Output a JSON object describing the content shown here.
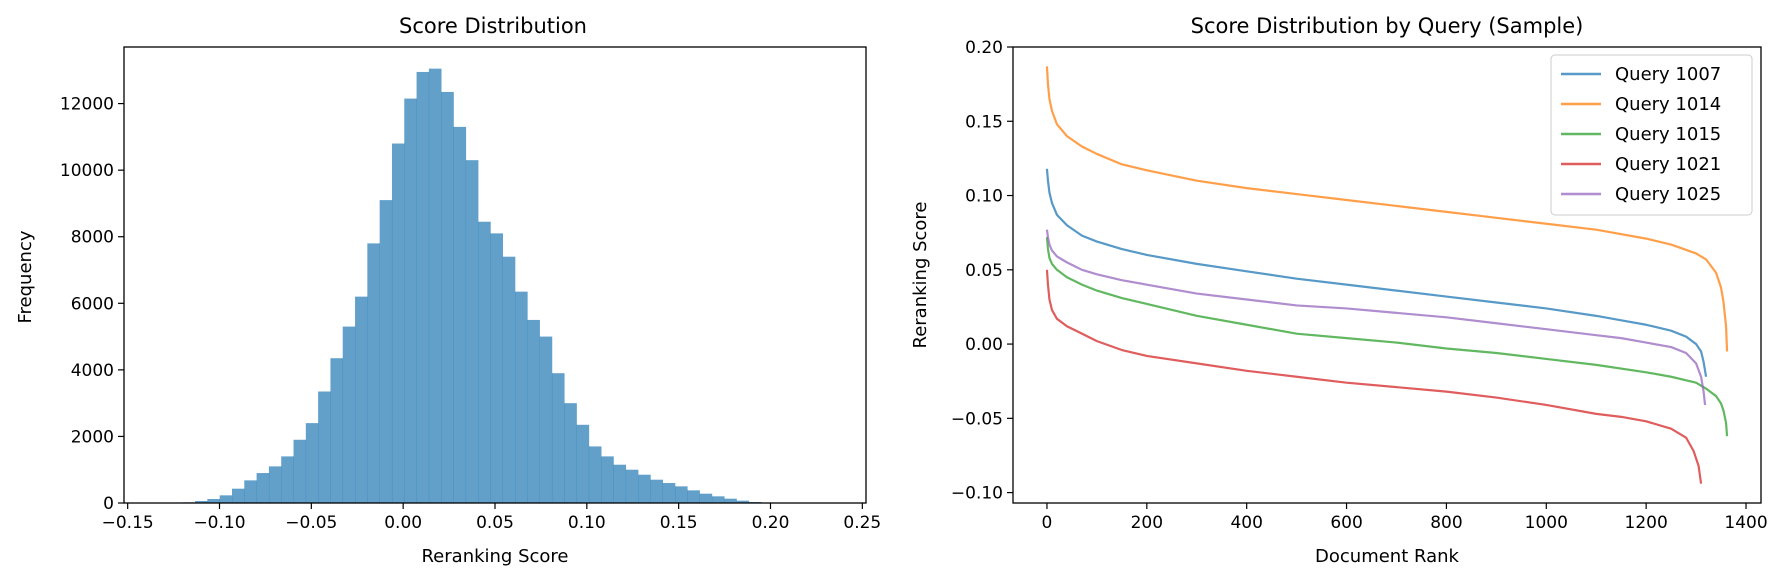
{
  "chart_data": [
    {
      "type": "bar",
      "title": "Score Distribution",
      "xlabel": "Reranking Score",
      "ylabel": "Frequency",
      "xlim": [
        -0.152,
        0.252
      ],
      "ylim": [
        0,
        13700
      ],
      "xticks": [
        -0.15,
        -0.1,
        -0.05,
        0.0,
        0.05,
        0.1,
        0.15,
        0.2,
        0.25
      ],
      "xtick_labels": [
        "−0.15",
        "−0.10",
        "−0.05",
        "0.00",
        "0.05",
        "0.10",
        "0.15",
        "0.20",
        "0.25"
      ],
      "yticks": [
        0,
        2000,
        4000,
        6000,
        8000,
        10000,
        12000
      ],
      "ytick_labels": [
        "0",
        "2000",
        "4000",
        "6000",
        "8000",
        "10000",
        "12000"
      ],
      "grid": false,
      "bar_color": "#1f77b4",
      "bin_edges_start": -0.12,
      "bin_width": 0.0067,
      "values": [
        20,
        60,
        120,
        230,
        430,
        680,
        900,
        1100,
        1400,
        1900,
        2400,
        3350,
        4350,
        5300,
        6200,
        7800,
        9100,
        10800,
        12150,
        12950,
        13050,
        12350,
        11300,
        10300,
        8450,
        8100,
        7400,
        6350,
        5500,
        5000,
        3900,
        3000,
        2350,
        1700,
        1400,
        1150,
        1000,
        850,
        700,
        600,
        500,
        380,
        280,
        200,
        130,
        70,
        30,
        10
      ]
    },
    {
      "type": "line",
      "title": "Score Distribution by Query (Sample)",
      "xlabel": "Document Rank",
      "ylabel": "Reranking Score",
      "xlim": [
        -68,
        1430
      ],
      "ylim": [
        -0.107,
        0.2
      ],
      "xticks": [
        0,
        200,
        400,
        600,
        800,
        1000,
        1200,
        1400
      ],
      "xtick_labels": [
        "0",
        "200",
        "400",
        "600",
        "800",
        "1000",
        "1200",
        "1400"
      ],
      "yticks": [
        -0.1,
        -0.05,
        0.0,
        0.05,
        0.1,
        0.15,
        0.2
      ],
      "ytick_labels": [
        "−0.10",
        "−0.05",
        "0.00",
        "0.05",
        "0.10",
        "0.15",
        "0.20"
      ],
      "grid": false,
      "legend": "top-right",
      "series": [
        {
          "name": "Query 1007",
          "color": "#1f77b4",
          "x": [
            0,
            2,
            5,
            10,
            20,
            40,
            70,
            100,
            150,
            200,
            300,
            400,
            500,
            600,
            700,
            800,
            900,
            1000,
            1100,
            1150,
            1200,
            1250,
            1280,
            1300,
            1310,
            1315,
            1320
          ],
          "y": [
            0.118,
            0.11,
            0.102,
            0.095,
            0.087,
            0.08,
            0.073,
            0.069,
            0.064,
            0.06,
            0.054,
            0.049,
            0.044,
            0.04,
            0.036,
            0.032,
            0.028,
            0.024,
            0.019,
            0.016,
            0.013,
            0.009,
            0.005,
            0.0,
            -0.005,
            -0.012,
            -0.022
          ]
        },
        {
          "name": "Query 1014",
          "color": "#ff7f0e",
          "x": [
            0,
            2,
            5,
            10,
            20,
            40,
            70,
            100,
            150,
            200,
            300,
            400,
            500,
            600,
            700,
            800,
            900,
            1000,
            1100,
            1200,
            1250,
            1300,
            1320,
            1340,
            1350,
            1355,
            1360,
            1362
          ],
          "y": [
            0.187,
            0.175,
            0.165,
            0.157,
            0.148,
            0.14,
            0.133,
            0.128,
            0.121,
            0.117,
            0.11,
            0.105,
            0.101,
            0.097,
            0.093,
            0.089,
            0.085,
            0.081,
            0.077,
            0.071,
            0.067,
            0.061,
            0.057,
            0.048,
            0.038,
            0.028,
            0.012,
            -0.005
          ]
        },
        {
          "name": "Query 1015",
          "color": "#2ca02c",
          "x": [
            0,
            2,
            5,
            10,
            20,
            40,
            70,
            100,
            150,
            200,
            300,
            400,
            500,
            600,
            700,
            800,
            900,
            1000,
            1100,
            1200,
            1250,
            1300,
            1320,
            1340,
            1350,
            1355,
            1360,
            1362
          ],
          "y": [
            0.072,
            0.064,
            0.058,
            0.054,
            0.05,
            0.045,
            0.04,
            0.036,
            0.031,
            0.027,
            0.019,
            0.013,
            0.007,
            0.004,
            0.001,
            -0.003,
            -0.006,
            -0.01,
            -0.014,
            -0.019,
            -0.022,
            -0.026,
            -0.03,
            -0.035,
            -0.04,
            -0.045,
            -0.053,
            -0.062
          ]
        },
        {
          "name": "Query 1021",
          "color": "#d62728",
          "x": [
            0,
            2,
            5,
            10,
            20,
            40,
            70,
            100,
            150,
            200,
            300,
            400,
            500,
            600,
            700,
            800,
            900,
            1000,
            1100,
            1150,
            1200,
            1250,
            1280,
            1295,
            1305,
            1310
          ],
          "y": [
            0.05,
            0.04,
            0.03,
            0.023,
            0.017,
            0.012,
            0.007,
            0.002,
            -0.004,
            -0.008,
            -0.013,
            -0.018,
            -0.022,
            -0.026,
            -0.029,
            -0.032,
            -0.036,
            -0.041,
            -0.047,
            -0.049,
            -0.052,
            -0.057,
            -0.063,
            -0.072,
            -0.082,
            -0.094
          ]
        },
        {
          "name": "Query 1025",
          "color": "#9467bd",
          "x": [
            0,
            2,
            5,
            10,
            20,
            40,
            70,
            100,
            150,
            200,
            300,
            400,
            500,
            600,
            700,
            800,
            900,
            1000,
            1100,
            1150,
            1200,
            1250,
            1280,
            1300,
            1310,
            1315,
            1318
          ],
          "y": [
            0.077,
            0.072,
            0.067,
            0.063,
            0.059,
            0.055,
            0.05,
            0.047,
            0.043,
            0.04,
            0.034,
            0.03,
            0.026,
            0.024,
            0.021,
            0.018,
            0.014,
            0.01,
            0.006,
            0.004,
            0.001,
            -0.002,
            -0.006,
            -0.013,
            -0.022,
            -0.032,
            -0.041
          ]
        }
      ]
    }
  ]
}
